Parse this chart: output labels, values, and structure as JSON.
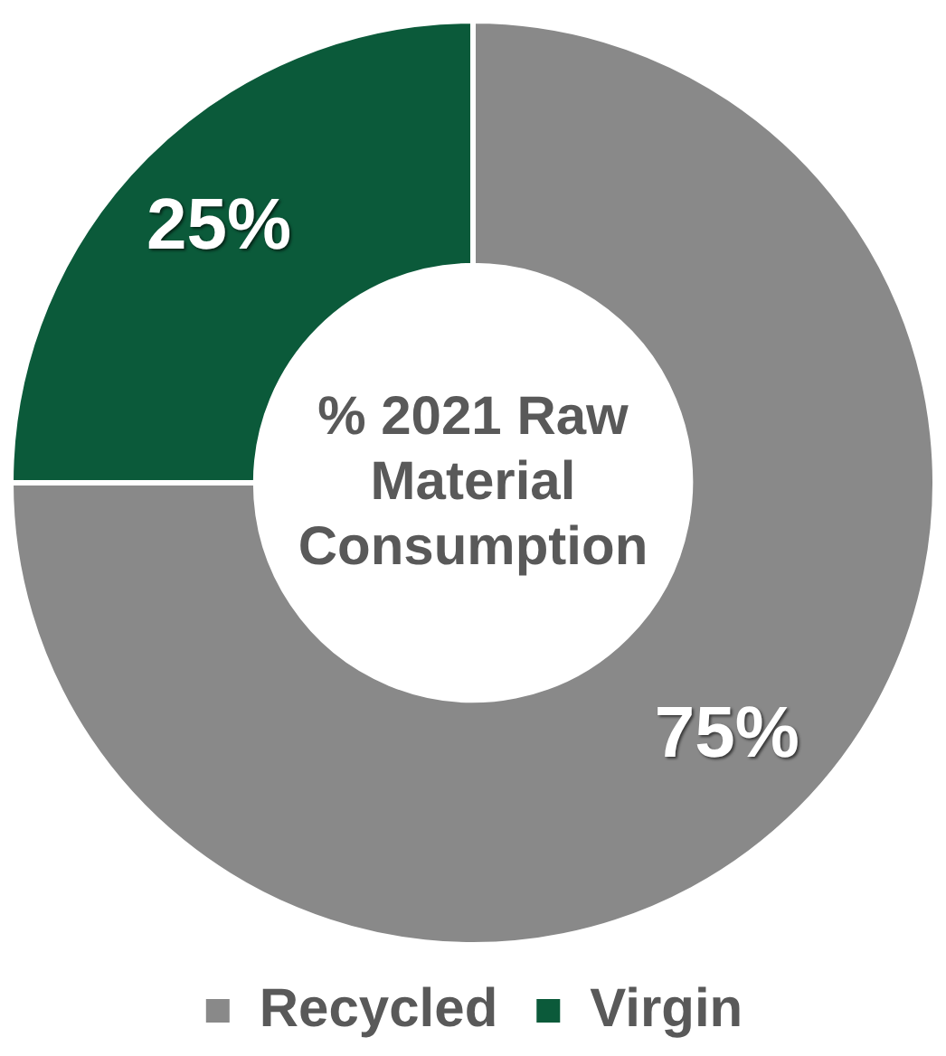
{
  "chart_data": {
    "type": "donut",
    "title": "% 2021 Raw Material Consumption",
    "categories": [
      "Recycled",
      "Virgin"
    ],
    "values": [
      75,
      25
    ],
    "colors": [
      "#898989",
      "#0b5a3a"
    ],
    "value_labels": [
      "75%",
      "25%"
    ],
    "legend": "bottom"
  }
}
